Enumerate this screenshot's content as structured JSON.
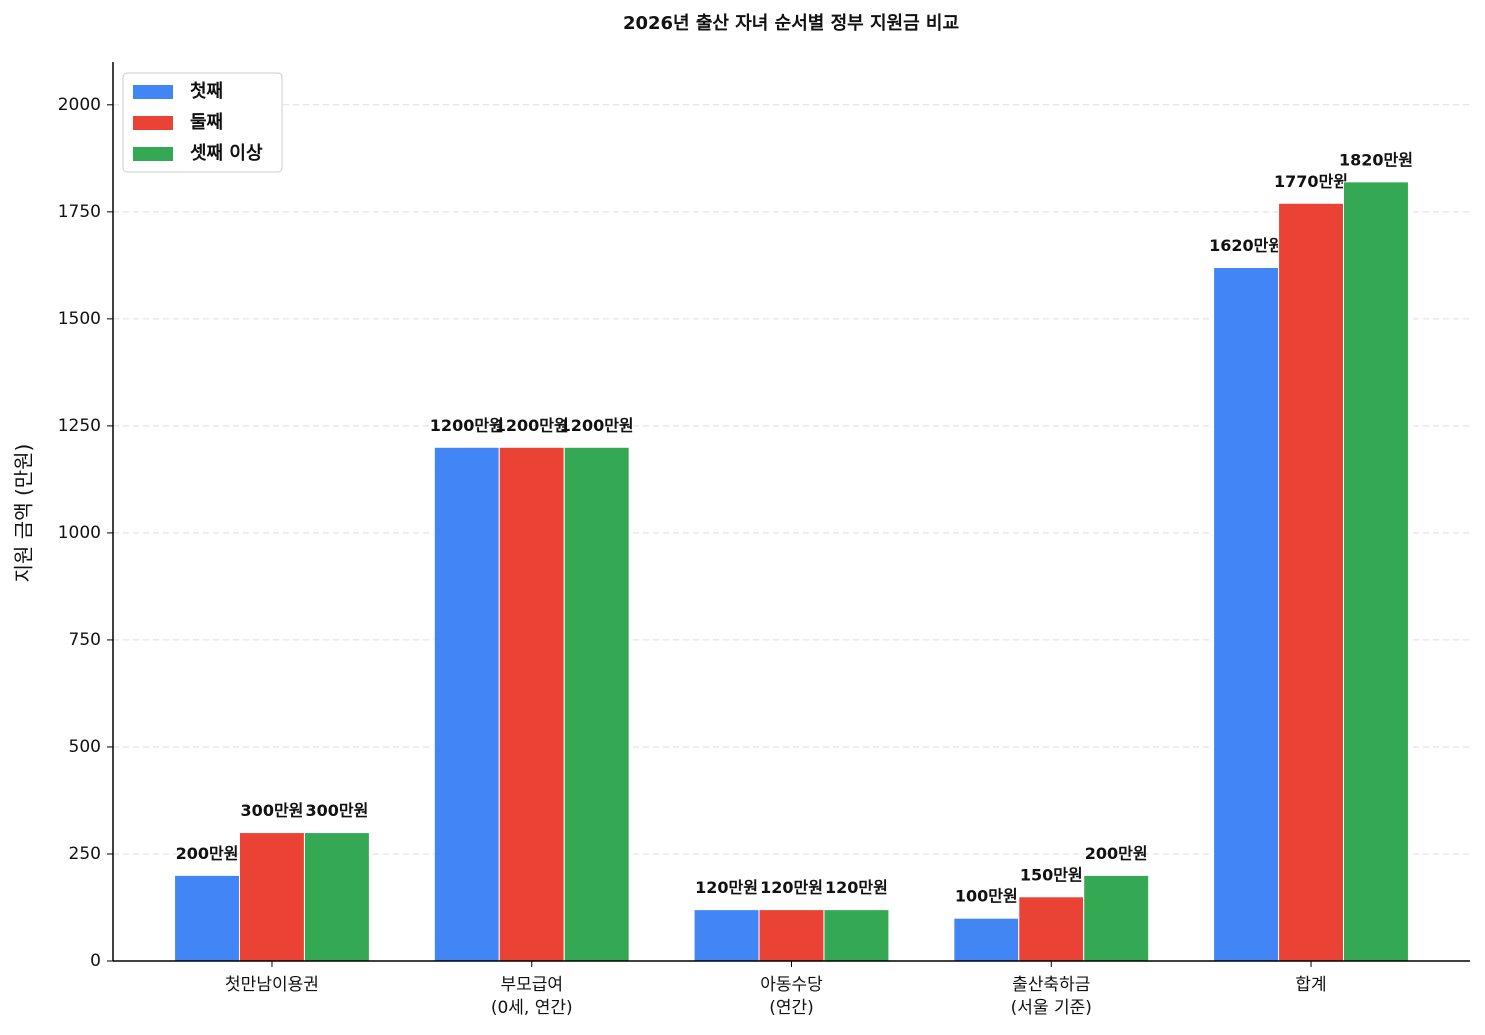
{
  "chart_data": {
    "type": "bar",
    "title": "2026년 출산 자녀 순서별 정부 지원금 비교",
    "y_label": "지원 금액 (만원)",
    "categories": [
      "첫만남이용권",
      "부모급여\n(0세, 연간)",
      "아동수당\n(연간)",
      "출산축하금\n(서울 기준)",
      "합계"
    ],
    "series": [
      {
        "name": "첫째",
        "color": "#4285f4",
        "values": [
          200,
          1200,
          120,
          100,
          1620
        ],
        "value_labels": [
          "200만원",
          "1200만원",
          "120만원",
          "100만원",
          "1620만원"
        ]
      },
      {
        "name": "둘째",
        "color": "#ea4335",
        "values": [
          300,
          1200,
          120,
          150,
          1770
        ],
        "value_labels": [
          "300만원",
          "1200만원",
          "120만원",
          "150만원",
          "1770만원"
        ]
      },
      {
        "name": "셋째 이상",
        "color": "#34a853",
        "values": [
          300,
          1200,
          120,
          200,
          1820
        ],
        "value_labels": [
          "300만원",
          "1200만원",
          "120만원",
          "200만원",
          "1820만원"
        ]
      }
    ],
    "ylim": [
      0,
      2100
    ],
    "yticks": [
      0,
      250,
      500,
      750,
      1000,
      1250,
      1500,
      1750,
      2000
    ],
    "grid": true,
    "legend": "upper-left"
  }
}
